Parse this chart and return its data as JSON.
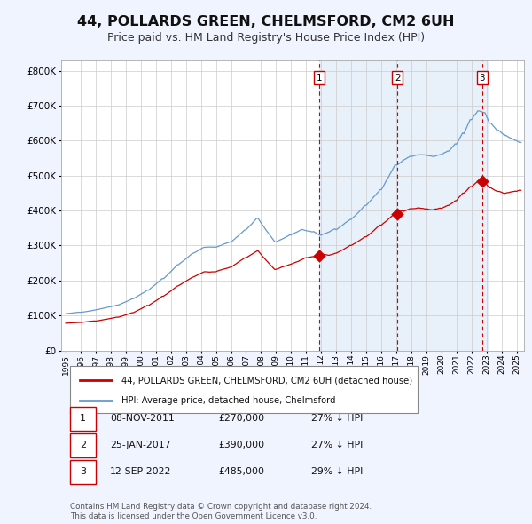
{
  "title": "44, POLLARDS GREEN, CHELMSFORD, CM2 6UH",
  "subtitle": "Price paid vs. HM Land Registry's House Price Index (HPI)",
  "ylabel_ticks": [
    "£0",
    "£100K",
    "£200K",
    "£300K",
    "£400K",
    "£500K",
    "£600K",
    "£700K",
    "£800K"
  ],
  "ytick_values": [
    0,
    100000,
    200000,
    300000,
    400000,
    500000,
    600000,
    700000,
    800000
  ],
  "ylim": [
    0,
    830000
  ],
  "xlim_start": 1994.7,
  "xlim_end": 2025.5,
  "xtick_years": [
    1995,
    1996,
    1997,
    1998,
    1999,
    2000,
    2001,
    2002,
    2003,
    2004,
    2005,
    2006,
    2007,
    2008,
    2009,
    2010,
    2011,
    2012,
    2013,
    2014,
    2015,
    2016,
    2017,
    2018,
    2019,
    2020,
    2021,
    2022,
    2023,
    2024,
    2025
  ],
  "hpi_color": "#6699cc",
  "price_color": "#cc0000",
  "bg_color": "#f0f4ff",
  "plot_bg": "#ffffff",
  "shade_color": "#dce8f8",
  "gridcolor": "#cccccc",
  "vline_color": "#cc0000",
  "sale_dates": [
    2011.86,
    2017.07,
    2022.71
  ],
  "sale_prices": [
    270000,
    390000,
    485000
  ],
  "sale_labels": [
    "1",
    "2",
    "3"
  ],
  "legend1_label": "44, POLLARDS GREEN, CHELMSFORD, CM2 6UH (detached house)",
  "legend2_label": "HPI: Average price, detached house, Chelmsford",
  "table_data": [
    [
      "1",
      "08-NOV-2011",
      "£270,000",
      "27% ↓ HPI"
    ],
    [
      "2",
      "25-JAN-2017",
      "£390,000",
      "27% ↓ HPI"
    ],
    [
      "3",
      "12-SEP-2022",
      "£485,000",
      "29% ↓ HPI"
    ]
  ],
  "footer": "Contains HM Land Registry data © Crown copyright and database right 2024.\nThis data is licensed under the Open Government Licence v3.0."
}
